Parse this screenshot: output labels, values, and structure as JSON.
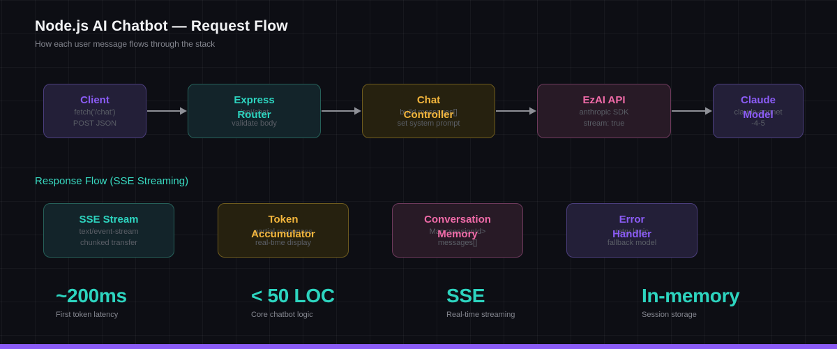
{
  "header": {
    "title": "Node.js AI Chatbot — Request Flow",
    "subtitle": "How each user message flows through the stack"
  },
  "request_flow": {
    "nodes": [
      {
        "title_lines": [
          "Client"
        ],
        "sub_lines": [
          "fetch('/chat')",
          "POST JSON"
        ],
        "color": "purple"
      },
      {
        "title_lines": [
          "Express",
          "Router"
        ],
        "sub_lines": [
          "/api/chat",
          "validate body"
        ],
        "color": "teal"
      },
      {
        "title_lines": [
          "Chat",
          "Controller"
        ],
        "sub_lines": [
          "build messages[]",
          "set system prompt"
        ],
        "color": "gold"
      },
      {
        "title_lines": [
          "EzAI API"
        ],
        "sub_lines": [
          "anthropic SDK",
          "stream: true"
        ],
        "color": "pink"
      },
      {
        "title_lines": [
          "Claude",
          "Model"
        ],
        "sub_lines": [
          "claude-sonnet",
          "-4-5"
        ],
        "color": "purple"
      }
    ]
  },
  "response_flow": {
    "section_title": "Response Flow (SSE Streaming)",
    "nodes": [
      {
        "title_lines": [
          "SSE Stream"
        ],
        "sub_lines": [
          "text/event-stream",
          "chunked transfer"
        ],
        "color": "teal"
      },
      {
        "title_lines": [
          "Token",
          "Accumulator"
        ],
        "sub_lines": [
          "partial responses",
          "real-time display"
        ],
        "color": "gold"
      },
      {
        "title_lines": [
          "Conversation",
          "Memory"
        ],
        "sub_lines": [
          "Map<sessionId>",
          "messages[]"
        ],
        "color": "pink"
      },
      {
        "title_lines": [
          "Error",
          "Handler"
        ],
        "sub_lines": [
          "retry logic",
          "fallback model"
        ],
        "color": "purple"
      }
    ]
  },
  "stats": [
    {
      "value": "~200ms",
      "label": "First token latency"
    },
    {
      "value": "< 50 LOC",
      "label": "Core chatbot logic"
    },
    {
      "value": "SSE",
      "label": "Real-time streaming"
    },
    {
      "value": "In-memory",
      "label": "Session storage"
    }
  ],
  "icons": {
    "flow_connector": "arrow-right"
  },
  "colors": {
    "background": "#0d0e14",
    "accent_teal": "#2dd4bf",
    "accent_purple": "#8b5cf6",
    "accent_gold": "#f2b53c",
    "accent_pink": "#f06ba8",
    "arrow_gray": "#8e9097",
    "bottom_bar": "#8b5cf6"
  }
}
